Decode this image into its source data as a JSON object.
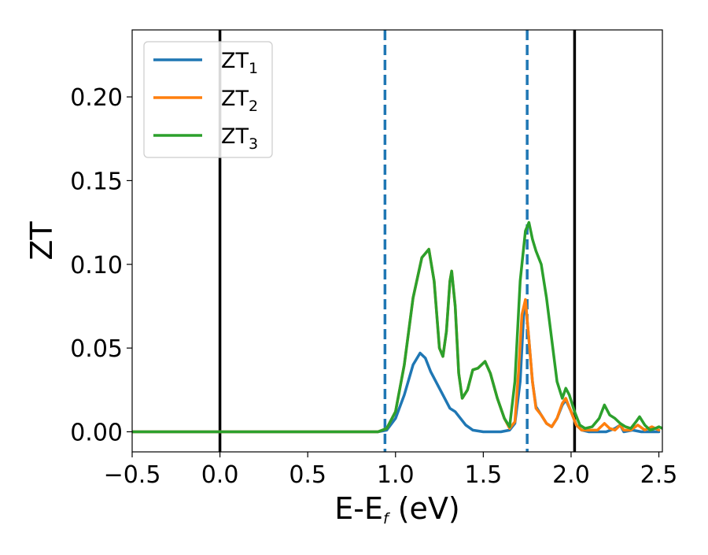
{
  "chart_data": {
    "type": "line",
    "title": "",
    "xlabel": {
      "main": "E-E",
      "sub": "f",
      "unit": " (eV)"
    },
    "ylabel": "ZT",
    "xlim": [
      -0.5,
      2.52
    ],
    "ylim": [
      -0.012,
      0.24
    ],
    "xticks": [
      {
        "value": -0.5,
        "label": "−0.5"
      },
      {
        "value": 0.0,
        "label": "0.0"
      },
      {
        "value": 0.5,
        "label": "0.5"
      },
      {
        "value": 1.0,
        "label": "1.0"
      },
      {
        "value": 1.5,
        "label": "1.5"
      },
      {
        "value": 2.0,
        "label": "2.0"
      },
      {
        "value": 2.5,
        "label": "2.5"
      }
    ],
    "yticks": [
      {
        "value": 0.0,
        "label": "0.00"
      },
      {
        "value": 0.05,
        "label": "0.05"
      },
      {
        "value": 0.1,
        "label": "0.10"
      },
      {
        "value": 0.15,
        "label": "0.15"
      },
      {
        "value": 0.2,
        "label": "0.20"
      }
    ],
    "grid": false,
    "legend_position": "top-left",
    "vlines": [
      {
        "x": 0.0,
        "style": "solid",
        "color": "#000000"
      },
      {
        "x": 2.02,
        "style": "solid",
        "color": "#000000"
      },
      {
        "x": 0.94,
        "style": "dashed",
        "color": "#1f77b4"
      },
      {
        "x": 1.75,
        "style": "dashed",
        "color": "#1f77b4"
      }
    ],
    "series": [
      {
        "name": "ZT",
        "sub": "1",
        "color": "#1f77b4",
        "points": [
          [
            -0.5,
            0
          ],
          [
            0.8,
            0
          ],
          [
            0.9,
            0
          ],
          [
            0.95,
            0.001
          ],
          [
            1.0,
            0.008
          ],
          [
            1.05,
            0.022
          ],
          [
            1.1,
            0.04
          ],
          [
            1.14,
            0.047
          ],
          [
            1.17,
            0.044
          ],
          [
            1.2,
            0.036
          ],
          [
            1.24,
            0.028
          ],
          [
            1.28,
            0.02
          ],
          [
            1.31,
            0.014
          ],
          [
            1.34,
            0.012
          ],
          [
            1.37,
            0.008
          ],
          [
            1.4,
            0.004
          ],
          [
            1.44,
            0.001
          ],
          [
            1.5,
            0
          ],
          [
            1.6,
            0
          ],
          [
            1.65,
            0.001
          ],
          [
            1.68,
            0.005
          ],
          [
            1.71,
            0.03
          ],
          [
            1.73,
            0.07
          ],
          [
            1.74,
            0.078
          ],
          [
            1.76,
            0.055
          ],
          [
            1.78,
            0.03
          ],
          [
            1.8,
            0.015
          ],
          [
            1.83,
            0.01
          ],
          [
            1.86,
            0.005
          ],
          [
            1.89,
            0.003
          ],
          [
            1.92,
            0.008
          ],
          [
            1.95,
            0.016
          ],
          [
            1.97,
            0.019
          ],
          [
            2.0,
            0.012
          ],
          [
            2.03,
            0.004
          ],
          [
            2.06,
            0.001
          ],
          [
            2.1,
            0
          ],
          [
            2.2,
            0
          ],
          [
            2.25,
            0.002
          ],
          [
            2.28,
            0.004
          ],
          [
            2.3,
            0
          ],
          [
            2.35,
            0.001
          ],
          [
            2.4,
            0
          ],
          [
            2.45,
            0
          ],
          [
            2.5,
            0
          ]
        ]
      },
      {
        "name": "ZT",
        "sub": "2",
        "color": "#ff7f0e",
        "points": [
          [
            -0.5,
            0
          ],
          [
            0.8,
            0
          ],
          [
            0.9,
            0
          ],
          [
            0.95,
            0.002
          ],
          [
            1.0,
            0.012
          ],
          [
            1.05,
            0.04
          ],
          [
            1.1,
            0.08
          ],
          [
            1.15,
            0.104
          ],
          [
            1.19,
            0.109
          ],
          [
            1.22,
            0.09
          ],
          [
            1.25,
            0.05
          ],
          [
            1.27,
            0.045
          ],
          [
            1.29,
            0.06
          ],
          [
            1.31,
            0.09
          ],
          [
            1.32,
            0.096
          ],
          [
            1.34,
            0.075
          ],
          [
            1.36,
            0.035
          ],
          [
            1.38,
            0.02
          ],
          [
            1.41,
            0.025
          ],
          [
            1.44,
            0.037
          ],
          [
            1.47,
            0.038
          ],
          [
            1.51,
            0.042
          ],
          [
            1.54,
            0.035
          ],
          [
            1.58,
            0.02
          ],
          [
            1.62,
            0.008
          ],
          [
            1.65,
            0.002
          ],
          [
            1.68,
            0.006
          ],
          [
            1.7,
            0.035
          ],
          [
            1.72,
            0.07
          ],
          [
            1.74,
            0.079
          ],
          [
            1.76,
            0.055
          ],
          [
            1.78,
            0.03
          ],
          [
            1.8,
            0.014
          ],
          [
            1.83,
            0.01
          ],
          [
            1.86,
            0.005
          ],
          [
            1.89,
            0.003
          ],
          [
            1.92,
            0.008
          ],
          [
            1.95,
            0.017
          ],
          [
            1.97,
            0.02
          ],
          [
            2.0,
            0.012
          ],
          [
            2.03,
            0.004
          ],
          [
            2.06,
            0.001
          ],
          [
            2.1,
            0.001
          ],
          [
            2.15,
            0.001
          ],
          [
            2.19,
            0.005
          ],
          [
            2.22,
            0.002
          ],
          [
            2.25,
            0.001
          ],
          [
            2.28,
            0.004
          ],
          [
            2.3,
            0.001
          ],
          [
            2.34,
            0.001
          ],
          [
            2.38,
            0.004
          ],
          [
            2.42,
            0.001
          ],
          [
            2.46,
            0.003
          ],
          [
            2.5,
            0.001
          ]
        ]
      },
      {
        "name": "ZT",
        "sub": "3",
        "color": "#2ca02c",
        "points": [
          [
            -0.5,
            0
          ],
          [
            0.8,
            0
          ],
          [
            0.9,
            0
          ],
          [
            0.95,
            0.002
          ],
          [
            1.0,
            0.012
          ],
          [
            1.05,
            0.04
          ],
          [
            1.1,
            0.08
          ],
          [
            1.15,
            0.104
          ],
          [
            1.19,
            0.109
          ],
          [
            1.22,
            0.09
          ],
          [
            1.25,
            0.05
          ],
          [
            1.27,
            0.045
          ],
          [
            1.29,
            0.06
          ],
          [
            1.31,
            0.09
          ],
          [
            1.32,
            0.096
          ],
          [
            1.34,
            0.075
          ],
          [
            1.36,
            0.035
          ],
          [
            1.38,
            0.02
          ],
          [
            1.41,
            0.025
          ],
          [
            1.44,
            0.037
          ],
          [
            1.47,
            0.038
          ],
          [
            1.51,
            0.042
          ],
          [
            1.54,
            0.035
          ],
          [
            1.58,
            0.02
          ],
          [
            1.62,
            0.008
          ],
          [
            1.65,
            0.003
          ],
          [
            1.68,
            0.03
          ],
          [
            1.71,
            0.09
          ],
          [
            1.74,
            0.12
          ],
          [
            1.76,
            0.125
          ],
          [
            1.78,
            0.115
          ],
          [
            1.8,
            0.108
          ],
          [
            1.83,
            0.1
          ],
          [
            1.86,
            0.08
          ],
          [
            1.89,
            0.055
          ],
          [
            1.92,
            0.03
          ],
          [
            1.95,
            0.02
          ],
          [
            1.97,
            0.026
          ],
          [
            1.99,
            0.022
          ],
          [
            2.02,
            0.012
          ],
          [
            2.05,
            0.004
          ],
          [
            2.08,
            0.002
          ],
          [
            2.12,
            0.003
          ],
          [
            2.16,
            0.008
          ],
          [
            2.19,
            0.016
          ],
          [
            2.22,
            0.01
          ],
          [
            2.25,
            0.008
          ],
          [
            2.28,
            0.005
          ],
          [
            2.31,
            0.003
          ],
          [
            2.34,
            0.002
          ],
          [
            2.37,
            0.006
          ],
          [
            2.39,
            0.009
          ],
          [
            2.42,
            0.004
          ],
          [
            2.45,
            0.001
          ],
          [
            2.48,
            0.002
          ],
          [
            2.5,
            0.003
          ],
          [
            2.52,
            0.002
          ]
        ]
      }
    ]
  }
}
